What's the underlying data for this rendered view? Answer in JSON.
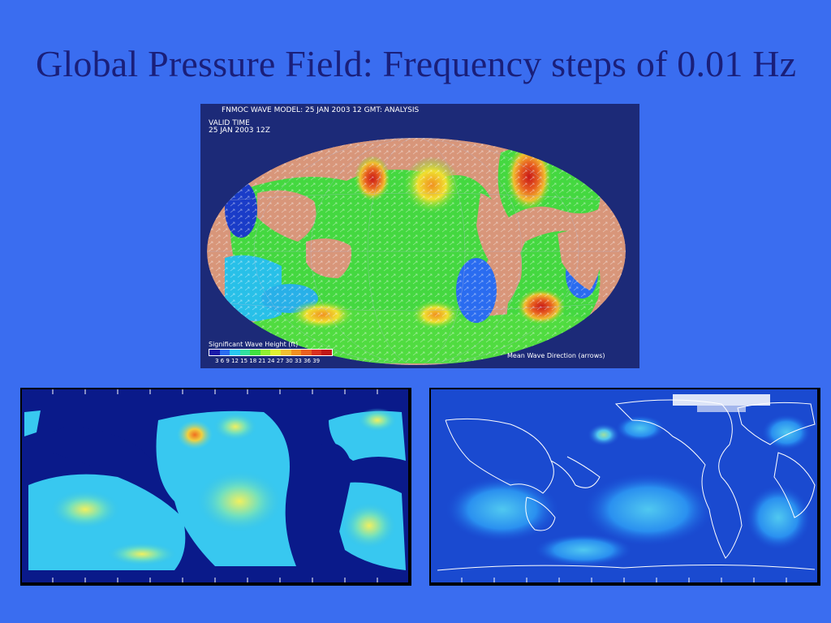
{
  "slide": {
    "title": "Global Pressure Field: Frequency steps of 0.01 Hz"
  },
  "top_map": {
    "header": "FNMOC WAVE MODEL: 25 JAN 2003       12 GMT:  ANALYSIS",
    "valid_time_label": "VALID TIME",
    "valid_time_value": "25 JAN 2003 12Z",
    "legend_title": "Significant Wave Height (ft)",
    "legend_ticks": "3  6  9  12 15 18 21 24 27 30 33 36 39",
    "legend_colors": [
      "#1a1aa8",
      "#2a6cf0",
      "#28c8f0",
      "#30e0a0",
      "#40e040",
      "#90f030",
      "#e0f030",
      "#f0c030",
      "#f09020",
      "#e86020",
      "#d83020",
      "#c01818"
    ],
    "footnote": "Mean Wave Direction (arrows)"
  },
  "colors": {
    "background": "#3a6df0",
    "title_text": "#1a1f7a",
    "land": "#d8967a",
    "ocean_deep": "#1c2a78"
  }
}
